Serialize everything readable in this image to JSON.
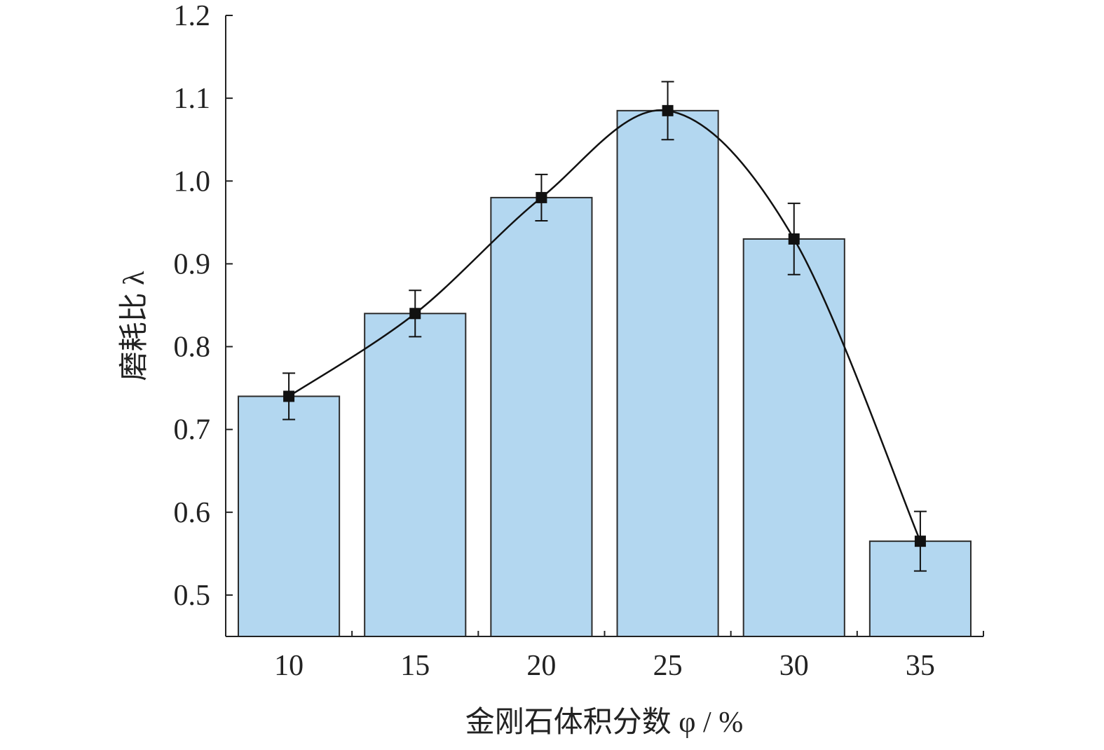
{
  "chart_data": {
    "type": "bar",
    "xlabel": "金刚石体积分数 φ / %",
    "ylabel": "磨耗比 λ",
    "categories": [
      "10",
      "15",
      "20",
      "25",
      "30",
      "35"
    ],
    "values": [
      0.74,
      0.84,
      0.98,
      1.085,
      0.93,
      0.565
    ],
    "error": [
      0.028,
      0.028,
      0.028,
      0.035,
      0.043,
      0.036
    ],
    "ylim": [
      0.45,
      1.2
    ],
    "yticks": [
      0.5,
      0.6,
      0.7,
      0.8,
      0.9,
      1.0,
      1.1,
      1.2
    ],
    "ytick_labels": [
      "0.5",
      "0.6",
      "0.7",
      "0.8",
      "0.9",
      "1.0",
      "1.1",
      "1.2"
    ],
    "overlay": {
      "type": "line",
      "smooth": true,
      "marker": "square"
    },
    "grid": false,
    "legend": "none",
    "colors": {
      "bar_fill": "#b3d7f0",
      "bar_edge": "#2b2b2b",
      "line": "#111111",
      "marker": "#111111",
      "axis": "#222222"
    }
  }
}
